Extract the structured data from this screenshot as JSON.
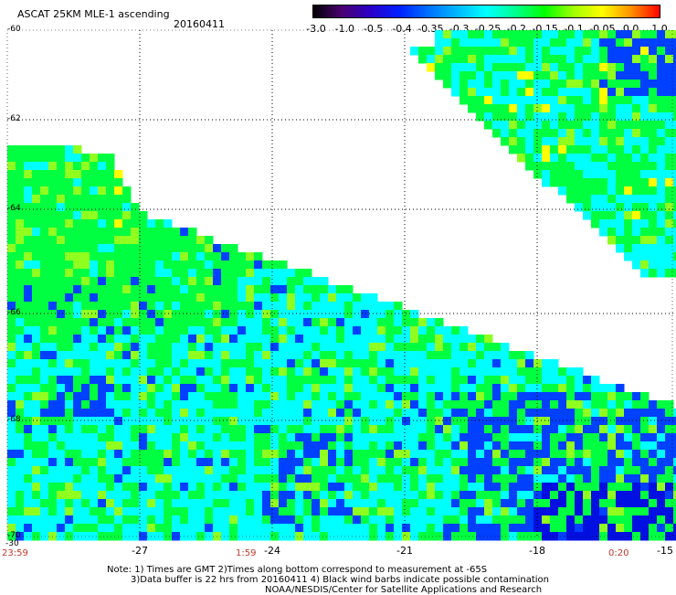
{
  "header": {
    "title": "ASCAT 25KM MLE-1 ascending",
    "date": "20160411"
  },
  "colorbar": {
    "labels": [
      "-3.0",
      "-1.0",
      "-0.5",
      "-0.4",
      "-0.35",
      "-0.3",
      "-0.25",
      "-0.2",
      "-0.15",
      "-0.1",
      "-0.05",
      "0.0",
      "1.0"
    ],
    "colors": [
      "#000000",
      "#4a0070",
      "#2a00c8",
      "#0020ff",
      "#0070ff",
      "#00b8ff",
      "#00ffff",
      "#00ff90",
      "#00ff00",
      "#a0ff00",
      "#ffff00",
      "#ff9000",
      "#ff0000"
    ]
  },
  "map": {
    "lat_labels": [
      "-60",
      "-62",
      "-64",
      "-66",
      "-68",
      "-70"
    ],
    "lon_labels": [
      "-30",
      "-27",
      "-24",
      "-21",
      "-18",
      "-15"
    ],
    "time_labels": [
      "23:59",
      "1:59",
      "0:20"
    ],
    "value_colors": {
      "cyan": "#00ffff",
      "green": "#00ff40",
      "yellow_green": "#90ff20",
      "blue": "#0040ff",
      "dark_blue": "#0010e0",
      "yellow": "#ffff00",
      "orange": "#ffb000"
    }
  },
  "notes": {
    "line1": "Note: 1) Times are GMT 2)Times along bottom correspond to measurement at -65S",
    "line2": "3)Data buffer is 22 hrs from 20160411 4) Black wind barbs indicate possible contamination",
    "line3": "NOAA/NESDIS/Center for Satellite Applications and Research"
  }
}
